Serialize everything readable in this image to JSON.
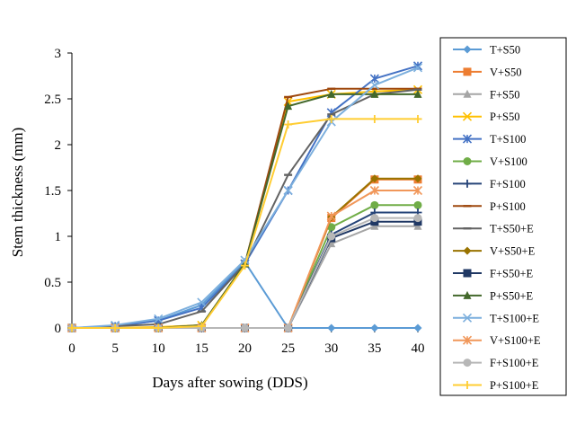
{
  "chart_data": {
    "type": "line",
    "title": "",
    "xlabel": "Days after sowing (DDS)",
    "ylabel": "Stem thickness (mm)",
    "x": [
      0,
      5,
      10,
      15,
      20,
      25,
      30,
      35,
      40
    ],
    "xticks": [
      "0",
      "5",
      "10",
      "15",
      "20",
      "25",
      "30",
      "35",
      "40"
    ],
    "yticks": [
      "0",
      "0.5",
      "1",
      "1.5",
      "2",
      "2.5",
      "3"
    ],
    "ylim": [
      0,
      3
    ],
    "xlim": [
      0,
      40
    ],
    "legend_position": "right",
    "series": [
      {
        "name": "T+S50",
        "color": "#5B9BD5",
        "marker": "diamond",
        "values": [
          0,
          0.02,
          0.08,
          0.25,
          0.72,
          0,
          0,
          0,
          0
        ]
      },
      {
        "name": "V+S50",
        "color": "#ED7D31",
        "marker": "square",
        "values": [
          0,
          0,
          0,
          0,
          0,
          0,
          1.2,
          1.62,
          1.62
        ]
      },
      {
        "name": "F+S50",
        "color": "#A5A5A5",
        "marker": "triangle",
        "values": [
          0,
          0,
          0,
          0,
          0,
          0,
          0.92,
          1.11,
          1.11
        ]
      },
      {
        "name": "P+S50",
        "color": "#FFC000",
        "marker": "x",
        "values": [
          0,
          0,
          0.01,
          0.03,
          0.7,
          2.47,
          2.55,
          2.58,
          2.6
        ]
      },
      {
        "name": "T+S100",
        "color": "#4472C4",
        "marker": "star",
        "values": [
          0,
          0.02,
          0.08,
          0.22,
          0.7,
          1.5,
          2.35,
          2.72,
          2.86
        ]
      },
      {
        "name": "V+S100",
        "color": "#70AD47",
        "marker": "circle",
        "values": [
          0,
          0,
          0,
          0,
          0,
          0,
          1.1,
          1.34,
          1.34
        ]
      },
      {
        "name": "F+S100",
        "color": "#264478",
        "marker": "plus",
        "values": [
          0,
          0,
          0,
          0,
          0,
          0,
          1.02,
          1.26,
          1.26
        ]
      },
      {
        "name": "P+S100",
        "color": "#9E480E",
        "marker": "dash",
        "values": [
          0,
          0,
          0,
          0.03,
          0.7,
          2.52,
          2.61,
          2.61,
          2.61
        ]
      },
      {
        "name": "T+S50+E",
        "color": "#636363",
        "marker": "dash",
        "values": [
          0,
          0.02,
          0.04,
          0.18,
          0.7,
          1.67,
          2.33,
          2.55,
          2.6
        ]
      },
      {
        "name": "V+S50+E",
        "color": "#997300",
        "marker": "diamond",
        "values": [
          0,
          0,
          0,
          0,
          0,
          0,
          1.21,
          1.63,
          1.63
        ]
      },
      {
        "name": "F+S50+E",
        "color": "#203864",
        "marker": "square",
        "values": [
          0,
          0,
          0,
          0,
          0,
          0,
          0.98,
          1.16,
          1.16
        ]
      },
      {
        "name": "P+S50+E",
        "color": "#43682B",
        "marker": "triangle",
        "values": [
          0,
          0,
          0,
          0.03,
          0.7,
          2.42,
          2.55,
          2.55,
          2.55
        ]
      },
      {
        "name": "T+S100+E",
        "color": "#7CAFDD",
        "marker": "x",
        "values": [
          0,
          0.03,
          0.1,
          0.28,
          0.74,
          1.5,
          2.25,
          2.65,
          2.84
        ]
      },
      {
        "name": "V+S100+E",
        "color": "#F1975A",
        "marker": "star",
        "values": [
          0,
          0,
          0,
          0,
          0,
          0,
          1.22,
          1.5,
          1.5
        ]
      },
      {
        "name": "F+S100+E",
        "color": "#B7B7B7",
        "marker": "circle",
        "values": [
          0,
          0,
          0,
          0,
          0,
          0,
          1.0,
          1.2,
          1.2
        ]
      },
      {
        "name": "P+S100+E",
        "color": "#FFCD33",
        "marker": "plus",
        "values": [
          0,
          0,
          0,
          0.02,
          0.68,
          2.22,
          2.28,
          2.28,
          2.28
        ]
      }
    ]
  }
}
